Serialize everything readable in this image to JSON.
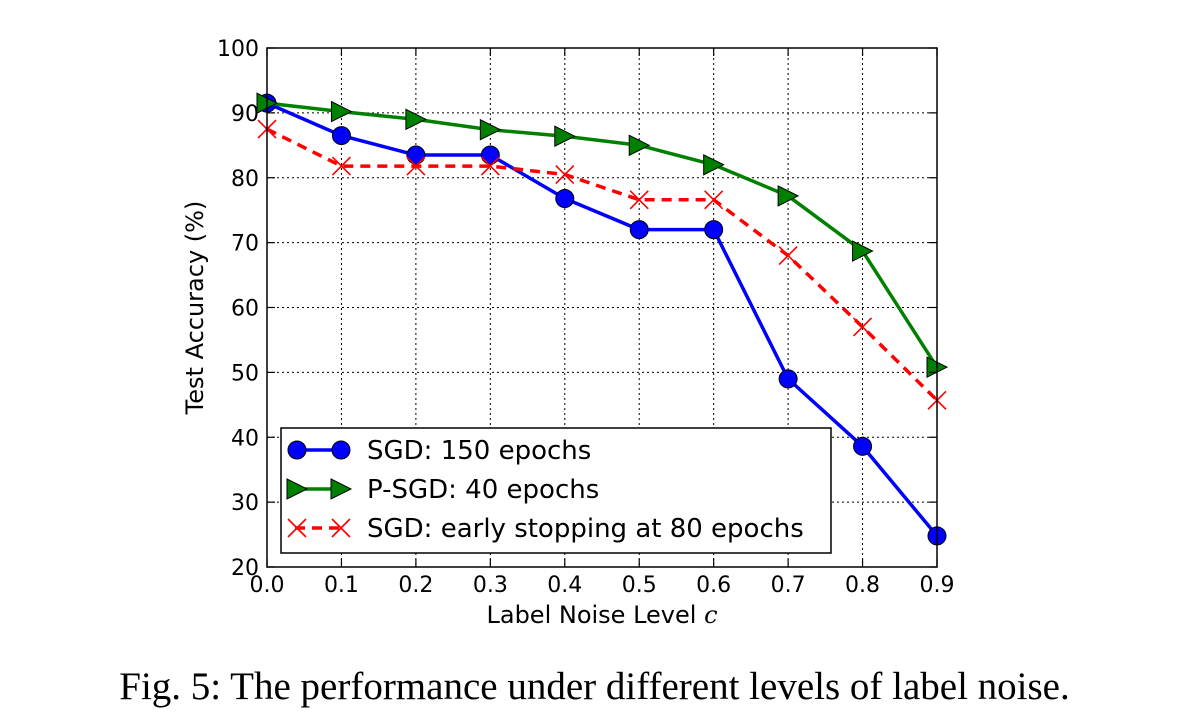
{
  "chart_data": {
    "type": "line",
    "xlabel": "Label Noise Level",
    "xlabel_symbol": "c",
    "ylabel": "Test Accuracy (%)",
    "xlim": [
      0.0,
      0.9
    ],
    "ylim": [
      20,
      100
    ],
    "x_ticks": [
      "0.0",
      "0.1",
      "0.2",
      "0.3",
      "0.4",
      "0.5",
      "0.6",
      "0.7",
      "0.8",
      "0.9"
    ],
    "y_ticks": [
      "20",
      "30",
      "40",
      "50",
      "60",
      "70",
      "80",
      "90",
      "100"
    ],
    "grid": true,
    "legend_position": "lower-left",
    "x": [
      0.0,
      0.1,
      0.2,
      0.3,
      0.4,
      0.5,
      0.6,
      0.7,
      0.8,
      0.9
    ],
    "series": [
      {
        "name": "SGD: 150 epochs",
        "color": "#0000ff",
        "marker": "circle",
        "linestyle": "solid",
        "values": [
          91.5,
          86.5,
          83.5,
          83.5,
          76.8,
          72.0,
          72.0,
          49.0,
          38.6,
          24.8
        ]
      },
      {
        "name": "P-SGD: 40 epochs",
        "color": "#008000",
        "marker": "triangle-right",
        "linestyle": "solid",
        "values": [
          91.5,
          90.2,
          89.0,
          87.4,
          86.4,
          85.0,
          82.0,
          77.2,
          68.7,
          50.8
        ]
      },
      {
        "name": "SGD: early stopping at 80 epochs",
        "color": "#ff0000",
        "marker": "x",
        "linestyle": "dashed",
        "values": [
          87.5,
          81.8,
          81.8,
          81.8,
          80.5,
          76.6,
          76.6,
          68.0,
          57.0,
          45.7
        ]
      }
    ]
  },
  "caption": "Fig. 5: The performance under different levels of label noise."
}
